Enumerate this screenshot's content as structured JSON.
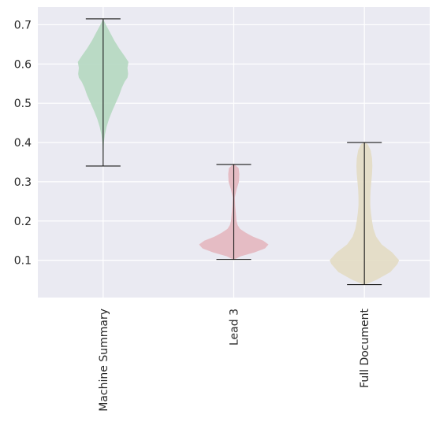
{
  "chart_data": {
    "type": "violin",
    "title": "",
    "xlabel": "",
    "ylabel": "",
    "categories": [
      "Machine Summary",
      "Lead 3",
      "Full Document"
    ],
    "ylim": [
      0.005,
      0.745
    ],
    "yticks": [
      0.1,
      0.2,
      0.3,
      0.4,
      0.5,
      0.6,
      0.7
    ],
    "ytick_labels": [
      "0.1",
      "0.2",
      "0.3",
      "0.4",
      "0.5",
      "0.6",
      "0.7"
    ],
    "grid": true,
    "legend": "none",
    "series": [
      {
        "category": "Machine Summary",
        "min": 0.34,
        "max": 0.715,
        "color": "#b5d8c0",
        "density": [
          [
            0.34,
            0.0
          ],
          [
            0.36,
            0.005
          ],
          [
            0.38,
            0.01
          ],
          [
            0.4,
            0.02
          ],
          [
            0.42,
            0.05
          ],
          [
            0.44,
            0.1
          ],
          [
            0.46,
            0.17
          ],
          [
            0.48,
            0.26
          ],
          [
            0.5,
            0.36
          ],
          [
            0.52,
            0.46
          ],
          [
            0.54,
            0.54
          ],
          [
            0.555,
            0.62
          ],
          [
            0.565,
            0.7
          ],
          [
            0.575,
            0.72
          ],
          [
            0.59,
            0.7
          ],
          [
            0.605,
            0.73
          ],
          [
            0.62,
            0.62
          ],
          [
            0.64,
            0.46
          ],
          [
            0.66,
            0.32
          ],
          [
            0.68,
            0.2
          ],
          [
            0.7,
            0.08
          ],
          [
            0.715,
            0.0
          ]
        ]
      },
      {
        "category": "Lead 3",
        "min": 0.102,
        "max": 0.344,
        "color": "#e4b7bf",
        "density": [
          [
            0.102,
            0.02
          ],
          [
            0.11,
            0.2
          ],
          [
            0.12,
            0.6
          ],
          [
            0.13,
            0.9
          ],
          [
            0.14,
            1.0
          ],
          [
            0.15,
            0.85
          ],
          [
            0.16,
            0.56
          ],
          [
            0.17,
            0.35
          ],
          [
            0.18,
            0.18
          ],
          [
            0.19,
            0.11
          ],
          [
            0.2,
            0.08
          ],
          [
            0.22,
            0.06
          ],
          [
            0.24,
            0.04
          ],
          [
            0.26,
            0.03
          ],
          [
            0.28,
            0.08
          ],
          [
            0.3,
            0.15
          ],
          [
            0.32,
            0.16
          ],
          [
            0.335,
            0.14
          ],
          [
            0.344,
            0.02
          ]
        ]
      },
      {
        "category": "Full Document",
        "min": 0.038,
        "max": 0.4,
        "color": "#e3dcc3",
        "density": [
          [
            0.038,
            0.02
          ],
          [
            0.05,
            0.35
          ],
          [
            0.07,
            0.75
          ],
          [
            0.09,
            0.95
          ],
          [
            0.1,
            1.0
          ],
          [
            0.12,
            0.8
          ],
          [
            0.14,
            0.5
          ],
          [
            0.16,
            0.34
          ],
          [
            0.18,
            0.26
          ],
          [
            0.2,
            0.22
          ],
          [
            0.22,
            0.19
          ],
          [
            0.24,
            0.17
          ],
          [
            0.26,
            0.17
          ],
          [
            0.28,
            0.18
          ],
          [
            0.3,
            0.2
          ],
          [
            0.32,
            0.22
          ],
          [
            0.34,
            0.23
          ],
          [
            0.36,
            0.22
          ],
          [
            0.38,
            0.18
          ],
          [
            0.395,
            0.1
          ],
          [
            0.4,
            0.02
          ]
        ]
      }
    ]
  }
}
